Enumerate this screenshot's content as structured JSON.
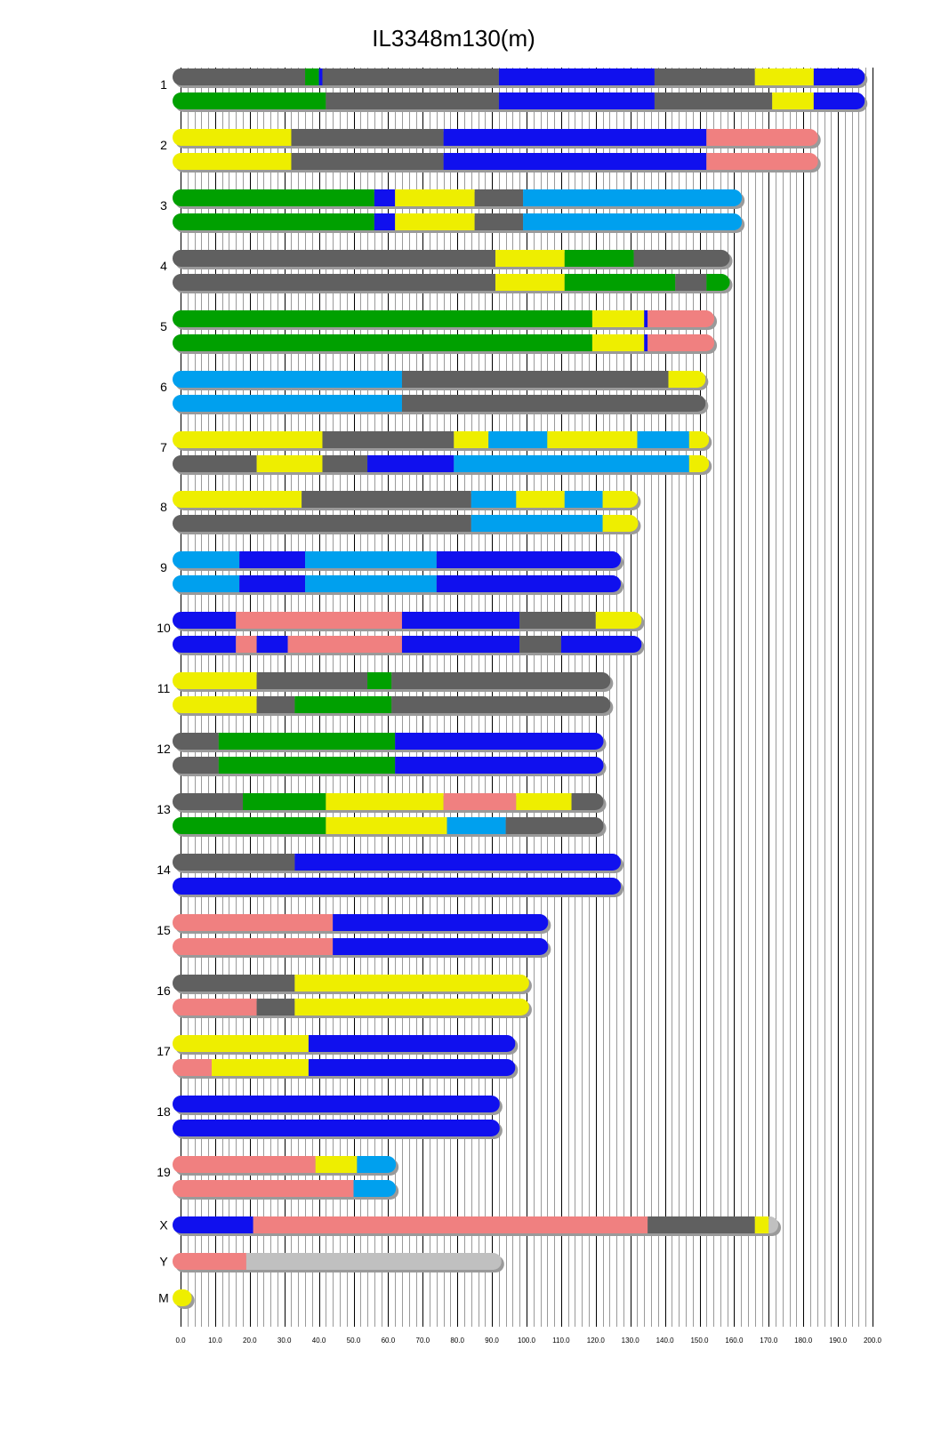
{
  "chart_data": {
    "type": "chromosome-haplotype-map",
    "title": "IL3348m130(m)",
    "x_ticks": [
      "0.0",
      "10.0",
      "20.0",
      "30.0",
      "40.0",
      "50.0",
      "60.0",
      "70.0",
      "80.0",
      "90.0",
      "100.0",
      "110.0",
      "120.0",
      "130.0",
      "140.0",
      "150.0",
      "160.0",
      "170.0",
      "180.0",
      "190.0",
      "200.0"
    ],
    "xlim": [
      0,
      200
    ],
    "minor_grid_step": 2,
    "colors": {
      "gray": "#606060",
      "green": "#00a000",
      "blue": "#1010ee",
      "yellow": "#eeee00",
      "pink": "#f08080",
      "lightblue": "#00a0ee",
      "lightgray": "#c0c0c0"
    },
    "chromosomes": [
      {
        "name": "1",
        "length": 197.5,
        "haplotypes": [
          [
            [
              0,
              36,
              "gray"
            ],
            [
              36,
              40,
              "green"
            ],
            [
              40,
              41,
              "blue"
            ],
            [
              41,
              92,
              "gray"
            ],
            [
              92,
              137,
              "blue"
            ],
            [
              137,
              166,
              "gray"
            ],
            [
              166,
              183,
              "yellow"
            ],
            [
              183,
              197.5,
              "blue"
            ]
          ],
          [
            [
              0,
              42,
              "green"
            ],
            [
              42,
              92,
              "gray"
            ],
            [
              92,
              137,
              "blue"
            ],
            [
              137,
              171,
              "gray"
            ],
            [
              171,
              183,
              "yellow"
            ],
            [
              183,
              197.5,
              "blue"
            ]
          ]
        ]
      },
      {
        "name": "2",
        "length": 184,
        "haplotypes": [
          [
            [
              0,
              32,
              "yellow"
            ],
            [
              32,
              76,
              "gray"
            ],
            [
              76,
              152,
              "blue"
            ],
            [
              152,
              184,
              "pink"
            ]
          ],
          [
            [
              0,
              32,
              "yellow"
            ],
            [
              32,
              76,
              "gray"
            ],
            [
              76,
              152,
              "blue"
            ],
            [
              152,
              184,
              "pink"
            ]
          ]
        ]
      },
      {
        "name": "3",
        "length": 162,
        "haplotypes": [
          [
            [
              0,
              56,
              "green"
            ],
            [
              56,
              62,
              "blue"
            ],
            [
              62,
              85,
              "yellow"
            ],
            [
              85,
              99,
              "gray"
            ],
            [
              99,
              162,
              "lightblue"
            ]
          ],
          [
            [
              0,
              56,
              "green"
            ],
            [
              56,
              62,
              "blue"
            ],
            [
              62,
              85,
              "yellow"
            ],
            [
              85,
              99,
              "gray"
            ],
            [
              99,
              162,
              "lightblue"
            ]
          ]
        ]
      },
      {
        "name": "4",
        "length": 158.5,
        "haplotypes": [
          [
            [
              0,
              91,
              "gray"
            ],
            [
              91,
              111,
              "yellow"
            ],
            [
              111,
              131,
              "green"
            ],
            [
              131,
              158.5,
              "gray"
            ]
          ],
          [
            [
              0,
              91,
              "gray"
            ],
            [
              91,
              111,
              "yellow"
            ],
            [
              111,
              143,
              "green"
            ],
            [
              143,
              152,
              "gray"
            ],
            [
              152,
              158.5,
              "green"
            ]
          ]
        ]
      },
      {
        "name": "5",
        "length": 154,
        "haplotypes": [
          [
            [
              0,
              119,
              "green"
            ],
            [
              119,
              134,
              "yellow"
            ],
            [
              134,
              135,
              "blue"
            ],
            [
              135,
              154,
              "pink"
            ]
          ],
          [
            [
              0,
              119,
              "green"
            ],
            [
              119,
              134,
              "yellow"
            ],
            [
              134,
              135,
              "blue"
            ],
            [
              135,
              154,
              "pink"
            ]
          ]
        ]
      },
      {
        "name": "6",
        "length": 151.5,
        "haplotypes": [
          [
            [
              0,
              64,
              "lightblue"
            ],
            [
              64,
              141,
              "gray"
            ],
            [
              141,
              151.5,
              "yellow"
            ]
          ],
          [
            [
              0,
              64,
              "lightblue"
            ],
            [
              64,
              151.5,
              "gray"
            ]
          ]
        ]
      },
      {
        "name": "7",
        "length": 152.5,
        "haplotypes": [
          [
            [
              0,
              41,
              "yellow"
            ],
            [
              41,
              79,
              "gray"
            ],
            [
              79,
              89,
              "yellow"
            ],
            [
              89,
              106,
              "lightblue"
            ],
            [
              106,
              132,
              "yellow"
            ],
            [
              132,
              147,
              "lightblue"
            ],
            [
              147,
              152.5,
              "yellow"
            ]
          ],
          [
            [
              0,
              22,
              "gray"
            ],
            [
              22,
              41,
              "yellow"
            ],
            [
              41,
              54,
              "gray"
            ],
            [
              54,
              79,
              "blue"
            ],
            [
              79,
              147,
              "lightblue"
            ],
            [
              147,
              152.5,
              "yellow"
            ]
          ]
        ]
      },
      {
        "name": "8",
        "length": 132,
        "haplotypes": [
          [
            [
              0,
              35,
              "yellow"
            ],
            [
              35,
              84,
              "gray"
            ],
            [
              84,
              97,
              "lightblue"
            ],
            [
              97,
              111,
              "yellow"
            ],
            [
              111,
              122,
              "lightblue"
            ],
            [
              122,
              132,
              "yellow"
            ]
          ],
          [
            [
              0,
              84,
              "gray"
            ],
            [
              84,
              122,
              "lightblue"
            ],
            [
              122,
              132,
              "yellow"
            ]
          ]
        ]
      },
      {
        "name": "9",
        "length": 127,
        "haplotypes": [
          [
            [
              0,
              17,
              "lightblue"
            ],
            [
              17,
              36,
              "blue"
            ],
            [
              36,
              74,
              "lightblue"
            ],
            [
              74,
              127,
              "blue"
            ]
          ],
          [
            [
              0,
              17,
              "lightblue"
            ],
            [
              17,
              36,
              "blue"
            ],
            [
              36,
              74,
              "lightblue"
            ],
            [
              74,
              127,
              "blue"
            ]
          ]
        ]
      },
      {
        "name": "10",
        "length": 133,
        "haplotypes": [
          [
            [
              0,
              16,
              "blue"
            ],
            [
              16,
              64,
              "pink"
            ],
            [
              64,
              98,
              "blue"
            ],
            [
              98,
              120,
              "gray"
            ],
            [
              120,
              133,
              "yellow"
            ]
          ],
          [
            [
              0,
              16,
              "blue"
            ],
            [
              16,
              22,
              "pink"
            ],
            [
              22,
              31,
              "blue"
            ],
            [
              31,
              64,
              "pink"
            ],
            [
              64,
              98,
              "blue"
            ],
            [
              98,
              110,
              "gray"
            ],
            [
              110,
              133,
              "blue"
            ]
          ]
        ]
      },
      {
        "name": "11",
        "length": 124,
        "haplotypes": [
          [
            [
              0,
              22,
              "yellow"
            ],
            [
              22,
              54,
              "gray"
            ],
            [
              54,
              61,
              "green"
            ],
            [
              61,
              124,
              "gray"
            ]
          ],
          [
            [
              0,
              22,
              "yellow"
            ],
            [
              22,
              33,
              "gray"
            ],
            [
              33,
              61,
              "green"
            ],
            [
              61,
              124,
              "gray"
            ]
          ]
        ]
      },
      {
        "name": "12",
        "length": 122,
        "haplotypes": [
          [
            [
              0,
              11,
              "gray"
            ],
            [
              11,
              62,
              "green"
            ],
            [
              62,
              122,
              "blue"
            ]
          ],
          [
            [
              0,
              11,
              "gray"
            ],
            [
              11,
              62,
              "green"
            ],
            [
              62,
              122,
              "blue"
            ]
          ]
        ]
      },
      {
        "name": "13",
        "length": 122,
        "haplotypes": [
          [
            [
              0,
              18,
              "gray"
            ],
            [
              18,
              42,
              "green"
            ],
            [
              42,
              76,
              "yellow"
            ],
            [
              76,
              97,
              "pink"
            ],
            [
              97,
              113,
              "yellow"
            ],
            [
              113,
              122,
              "gray"
            ]
          ],
          [
            [
              0,
              42,
              "green"
            ],
            [
              42,
              77,
              "yellow"
            ],
            [
              77,
              94,
              "lightblue"
            ],
            [
              94,
              122,
              "gray"
            ]
          ]
        ]
      },
      {
        "name": "14",
        "length": 127,
        "haplotypes": [
          [
            [
              0,
              33,
              "gray"
            ],
            [
              33,
              127,
              "blue"
            ]
          ],
          [
            [
              0,
              127,
              "blue"
            ]
          ]
        ]
      },
      {
        "name": "15",
        "length": 106,
        "haplotypes": [
          [
            [
              0,
              44,
              "pink"
            ],
            [
              44,
              106,
              "blue"
            ]
          ],
          [
            [
              0,
              44,
              "pink"
            ],
            [
              44,
              106,
              "blue"
            ]
          ]
        ]
      },
      {
        "name": "16",
        "length": 100.5,
        "haplotypes": [
          [
            [
              0,
              33,
              "gray"
            ],
            [
              33,
              100.5,
              "yellow"
            ]
          ],
          [
            [
              0,
              22,
              "pink"
            ],
            [
              22,
              33,
              "gray"
            ],
            [
              33,
              100.5,
              "yellow"
            ]
          ]
        ]
      },
      {
        "name": "17",
        "length": 96.5,
        "haplotypes": [
          [
            [
              0,
              37,
              "yellow"
            ],
            [
              37,
              96.5,
              "blue"
            ]
          ],
          [
            [
              0,
              9,
              "pink"
            ],
            [
              9,
              37,
              "yellow"
            ],
            [
              37,
              96.5,
              "blue"
            ]
          ]
        ]
      },
      {
        "name": "18",
        "length": 92,
        "haplotypes": [
          [
            [
              0,
              92,
              "blue"
            ]
          ],
          [
            [
              0,
              92,
              "blue"
            ]
          ]
        ]
      },
      {
        "name": "19",
        "length": 62,
        "haplotypes": [
          [
            [
              0,
              39,
              "pink"
            ],
            [
              39,
              51,
              "yellow"
            ],
            [
              51,
              62,
              "lightblue"
            ]
          ],
          [
            [
              0,
              50,
              "pink"
            ],
            [
              50,
              62,
              "lightblue"
            ]
          ]
        ]
      },
      {
        "name": "X",
        "length": 172.5,
        "haplotypes": [
          [
            [
              0,
              21,
              "blue"
            ],
            [
              21,
              135,
              "pink"
            ],
            [
              135,
              166,
              "gray"
            ],
            [
              166,
              170,
              "yellow"
            ],
            [
              170,
              172.5,
              "lightgray"
            ]
          ]
        ]
      },
      {
        "name": "Y",
        "length": 92.5,
        "haplotypes": [
          [
            [
              0,
              19,
              "pink"
            ],
            [
              19,
              92.5,
              "lightgray"
            ]
          ]
        ]
      },
      {
        "name": "M",
        "length": 3,
        "haplotypes": [
          [
            [
              0,
              3,
              "yellow"
            ]
          ]
        ]
      }
    ]
  }
}
